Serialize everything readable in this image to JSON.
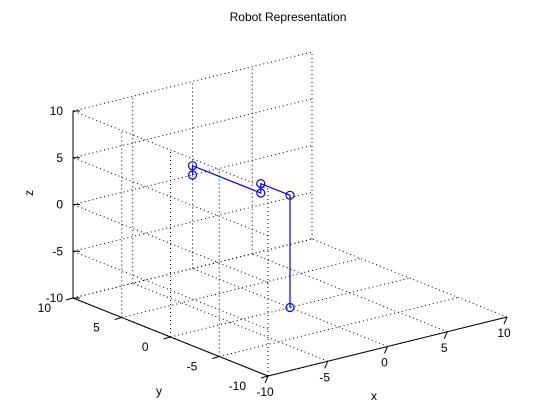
{
  "chart_data": {
    "type": "line3d",
    "title": "Robot Representation",
    "xlabel": "x",
    "ylabel": "y",
    "zlabel": "z",
    "xlim": [
      -10,
      10
    ],
    "ylim": [
      -10,
      10
    ],
    "zlim": [
      -10,
      10
    ],
    "xticks": [
      -10,
      -5,
      0,
      5,
      10
    ],
    "yticks": [
      -10,
      -5,
      0,
      5,
      10
    ],
    "zticks": [
      -10,
      -5,
      0,
      5,
      10
    ],
    "xtick_labels": [
      "-10",
      "-5",
      "0",
      "5",
      "10"
    ],
    "ytick_labels": [
      "-10",
      "-5",
      "0",
      "5",
      "10"
    ],
    "ztick_labels": [
      "-10",
      "-5",
      "0",
      "5",
      "10"
    ],
    "grid": true,
    "color": "#0000ff",
    "series": [
      {
        "points": [
          {
            "x": 0,
            "y": 0,
            "z": -10
          },
          {
            "x": 0,
            "y": 0,
            "z": 2
          },
          {
            "x": 0,
            "y": 3,
            "z": 2
          },
          {
            "x": 0,
            "y": 3,
            "z": 1
          },
          {
            "x": 0,
            "y": 10,
            "z": 1
          },
          {
            "x": 0,
            "y": 10,
            "z": 0
          }
        ]
      }
    ]
  }
}
